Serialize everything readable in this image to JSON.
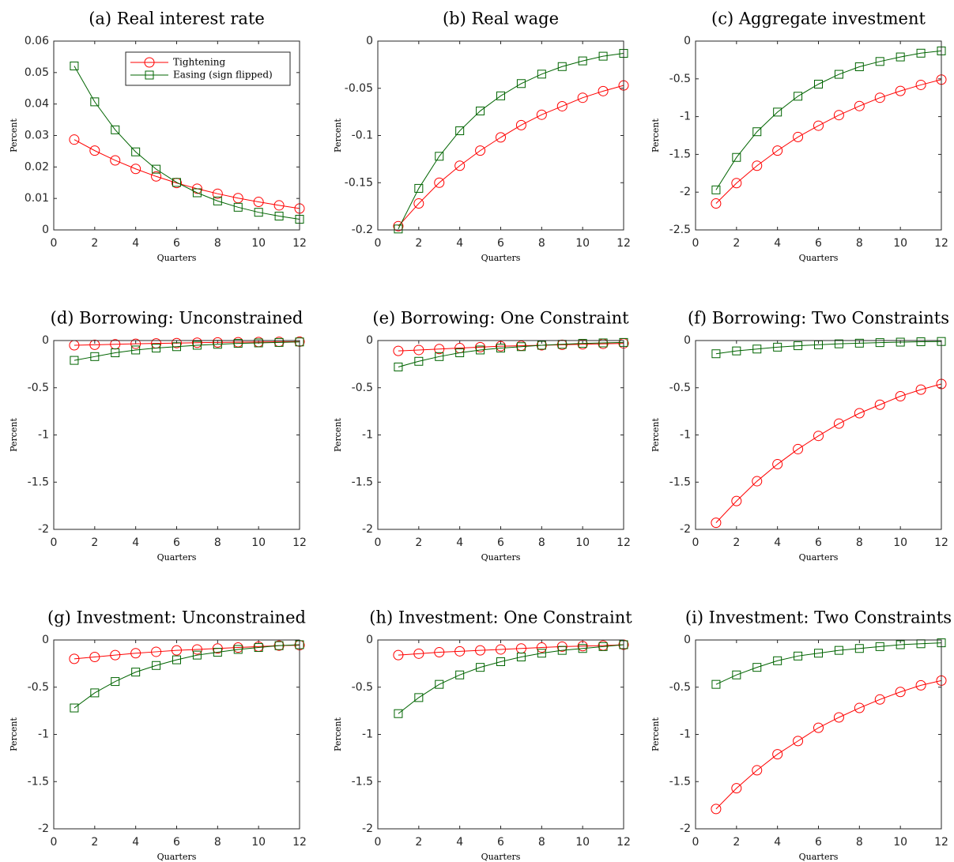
{
  "chart_data": [
    {
      "type": "line",
      "title": "(a) Real interest rate",
      "xlabel": "Quarters",
      "ylabel": "Percent",
      "legend": "upper right",
      "x": [
        1,
        2,
        3,
        4,
        5,
        6,
        7,
        8,
        9,
        10,
        11,
        12
      ],
      "xlim": [
        0,
        12
      ],
      "xticks": [
        0,
        2,
        4,
        6,
        8,
        10,
        12
      ],
      "ylim": [
        0,
        0.06
      ],
      "yticks": [
        0,
        0.01,
        0.02,
        0.03,
        0.04,
        0.05,
        0.06
      ],
      "series": [
        {
          "name": "Tightening",
          "color": "#ff0000",
          "marker": "circle",
          "values": [
            0.0287,
            0.0252,
            0.0221,
            0.0194,
            0.017,
            0.0149,
            0.0131,
            0.0115,
            0.0101,
            0.0089,
            0.0078,
            0.0068
          ]
        },
        {
          "name": "Easing (sign flipped)",
          "color": "#006400",
          "marker": "square",
          "values": [
            0.0521,
            0.0407,
            0.0318,
            0.0248,
            0.0193,
            0.0151,
            0.0118,
            0.0092,
            0.0072,
            0.0056,
            0.0044,
            0.0034
          ]
        }
      ]
    },
    {
      "type": "line",
      "title": "(b) Real wage",
      "xlabel": "Quarters",
      "ylabel": "Percent",
      "x": [
        1,
        2,
        3,
        4,
        5,
        6,
        7,
        8,
        9,
        10,
        11,
        12
      ],
      "xlim": [
        0,
        12
      ],
      "xticks": [
        0,
        2,
        4,
        6,
        8,
        10,
        12
      ],
      "ylim": [
        -0.2,
        0
      ],
      "yticks": [
        -0.2,
        -0.15,
        -0.1,
        -0.05,
        0
      ],
      "series": [
        {
          "color": "#ff0000",
          "marker": "circle",
          "values": [
            -0.196,
            -0.172,
            -0.15,
            -0.132,
            -0.116,
            -0.102,
            -0.089,
            -0.078,
            -0.069,
            -0.06,
            -0.053,
            -0.047
          ]
        },
        {
          "color": "#006400",
          "marker": "square",
          "values": [
            -0.199,
            -0.156,
            -0.122,
            -0.095,
            -0.074,
            -0.058,
            -0.045,
            -0.035,
            -0.027,
            -0.021,
            -0.016,
            -0.013
          ]
        }
      ]
    },
    {
      "type": "line",
      "title": "(c) Aggregate investment",
      "xlabel": "Quarters",
      "ylabel": "Percent",
      "x": [
        1,
        2,
        3,
        4,
        5,
        6,
        7,
        8,
        9,
        10,
        11,
        12
      ],
      "xlim": [
        0,
        12
      ],
      "xticks": [
        0,
        2,
        4,
        6,
        8,
        10,
        12
      ],
      "ylim": [
        -2.5,
        0
      ],
      "yticks": [
        -2.5,
        -2,
        -1.5,
        -1,
        -0.5,
        0
      ],
      "series": [
        {
          "color": "#ff0000",
          "marker": "circle",
          "values": [
            -2.15,
            -1.88,
            -1.65,
            -1.45,
            -1.27,
            -1.12,
            -0.98,
            -0.86,
            -0.75,
            -0.66,
            -0.58,
            -0.51
          ]
        },
        {
          "color": "#006400",
          "marker": "square",
          "values": [
            -1.97,
            -1.54,
            -1.2,
            -0.94,
            -0.73,
            -0.57,
            -0.44,
            -0.34,
            -0.27,
            -0.21,
            -0.16,
            -0.13
          ]
        }
      ]
    },
    {
      "type": "line",
      "title": "(d) Borrowing: Unconstrained",
      "xlabel": "Quarters",
      "ylabel": "Percent",
      "x": [
        1,
        2,
        3,
        4,
        5,
        6,
        7,
        8,
        9,
        10,
        11,
        12
      ],
      "xlim": [
        0,
        12
      ],
      "xticks": [
        0,
        2,
        4,
        6,
        8,
        10,
        12
      ],
      "ylim": [
        -2,
        0
      ],
      "yticks": [
        -2,
        -1.5,
        -1,
        -0.5,
        0
      ],
      "series": [
        {
          "color": "#ff0000",
          "marker": "circle",
          "values": [
            -0.05,
            -0.045,
            -0.04,
            -0.035,
            -0.03,
            -0.027,
            -0.023,
            -0.02,
            -0.018,
            -0.016,
            -0.014,
            -0.012
          ]
        },
        {
          "color": "#006400",
          "marker": "square",
          "values": [
            -0.21,
            -0.17,
            -0.13,
            -0.1,
            -0.08,
            -0.065,
            -0.05,
            -0.04,
            -0.03,
            -0.025,
            -0.02,
            -0.015
          ]
        }
      ]
    },
    {
      "type": "line",
      "title": "(e) Borrowing: One Constraint",
      "xlabel": "Quarters",
      "ylabel": "Percent",
      "x": [
        1,
        2,
        3,
        4,
        5,
        6,
        7,
        8,
        9,
        10,
        11,
        12
      ],
      "xlim": [
        0,
        12
      ],
      "xticks": [
        0,
        2,
        4,
        6,
        8,
        10,
        12
      ],
      "ylim": [
        -2,
        0
      ],
      "yticks": [
        -2,
        -1.5,
        -1,
        -0.5,
        0
      ],
      "series": [
        {
          "color": "#ff0000",
          "marker": "circle",
          "values": [
            -0.11,
            -0.1,
            -0.09,
            -0.08,
            -0.07,
            -0.06,
            -0.055,
            -0.05,
            -0.045,
            -0.04,
            -0.035,
            -0.03
          ]
        },
        {
          "color": "#006400",
          "marker": "square",
          "values": [
            -0.28,
            -0.22,
            -0.17,
            -0.13,
            -0.1,
            -0.08,
            -0.065,
            -0.05,
            -0.04,
            -0.03,
            -0.025,
            -0.02
          ]
        }
      ]
    },
    {
      "type": "line",
      "title": "(f) Borrowing: Two Constraints",
      "xlabel": "Quarters",
      "ylabel": "Percent",
      "x": [
        1,
        2,
        3,
        4,
        5,
        6,
        7,
        8,
        9,
        10,
        11,
        12
      ],
      "xlim": [
        0,
        12
      ],
      "xticks": [
        0,
        2,
        4,
        6,
        8,
        10,
        12
      ],
      "ylim": [
        -2,
        0
      ],
      "yticks": [
        -2,
        -1.5,
        -1,
        -0.5,
        0
      ],
      "series": [
        {
          "color": "#ff0000",
          "marker": "circle",
          "values": [
            -1.93,
            -1.7,
            -1.49,
            -1.31,
            -1.15,
            -1.01,
            -0.88,
            -0.77,
            -0.68,
            -0.59,
            -0.52,
            -0.46
          ]
        },
        {
          "color": "#006400",
          "marker": "square",
          "values": [
            -0.14,
            -0.11,
            -0.09,
            -0.07,
            -0.055,
            -0.045,
            -0.035,
            -0.028,
            -0.022,
            -0.017,
            -0.013,
            -0.01
          ]
        }
      ]
    },
    {
      "type": "line",
      "title": "(g) Investment: Unconstrained",
      "xlabel": "Quarters",
      "ylabel": "Percent",
      "x": [
        1,
        2,
        3,
        4,
        5,
        6,
        7,
        8,
        9,
        10,
        11,
        12
      ],
      "xlim": [
        0,
        12
      ],
      "xticks": [
        0,
        2,
        4,
        6,
        8,
        10,
        12
      ],
      "ylim": [
        -2,
        0
      ],
      "yticks": [
        -2,
        -1.5,
        -1,
        -0.5,
        0
      ],
      "series": [
        {
          "color": "#ff0000",
          "marker": "circle",
          "values": [
            -0.2,
            -0.18,
            -0.16,
            -0.14,
            -0.125,
            -0.11,
            -0.1,
            -0.09,
            -0.08,
            -0.07,
            -0.06,
            -0.055
          ]
        },
        {
          "color": "#006400",
          "marker": "square",
          "values": [
            -0.72,
            -0.56,
            -0.44,
            -0.34,
            -0.27,
            -0.21,
            -0.16,
            -0.13,
            -0.1,
            -0.08,
            -0.06,
            -0.05
          ]
        }
      ]
    },
    {
      "type": "line",
      "title": "(h) Investment: One Constraint",
      "xlabel": "Quarters",
      "ylabel": "Percent",
      "x": [
        1,
        2,
        3,
        4,
        5,
        6,
        7,
        8,
        9,
        10,
        11,
        12
      ],
      "xlim": [
        0,
        12
      ],
      "xticks": [
        0,
        2,
        4,
        6,
        8,
        10,
        12
      ],
      "ylim": [
        -2,
        0
      ],
      "yticks": [
        -2,
        -1.5,
        -1,
        -0.5,
        0
      ],
      "series": [
        {
          "color": "#ff0000",
          "marker": "circle",
          "values": [
            -0.16,
            -0.145,
            -0.13,
            -0.12,
            -0.11,
            -0.1,
            -0.09,
            -0.08,
            -0.07,
            -0.065,
            -0.06,
            -0.05
          ]
        },
        {
          "color": "#006400",
          "marker": "square",
          "values": [
            -0.78,
            -0.61,
            -0.47,
            -0.37,
            -0.29,
            -0.23,
            -0.18,
            -0.14,
            -0.11,
            -0.09,
            -0.07,
            -0.05
          ]
        }
      ]
    },
    {
      "type": "line",
      "title": "(i) Investment: Two Constraints",
      "xlabel": "Quarters",
      "ylabel": "Percent",
      "x": [
        1,
        2,
        3,
        4,
        5,
        6,
        7,
        8,
        9,
        10,
        11,
        12
      ],
      "xlim": [
        0,
        12
      ],
      "xticks": [
        0,
        2,
        4,
        6,
        8,
        10,
        12
      ],
      "ylim": [
        -2,
        0
      ],
      "yticks": [
        -2,
        -1.5,
        -1,
        -0.5,
        0
      ],
      "series": [
        {
          "color": "#ff0000",
          "marker": "circle",
          "values": [
            -1.79,
            -1.57,
            -1.38,
            -1.21,
            -1.07,
            -0.93,
            -0.82,
            -0.72,
            -0.63,
            -0.55,
            -0.48,
            -0.43
          ]
        },
        {
          "color": "#006400",
          "marker": "square",
          "values": [
            -0.47,
            -0.37,
            -0.29,
            -0.22,
            -0.17,
            -0.14,
            -0.11,
            -0.09,
            -0.07,
            -0.05,
            -0.04,
            -0.03
          ]
        }
      ]
    }
  ]
}
